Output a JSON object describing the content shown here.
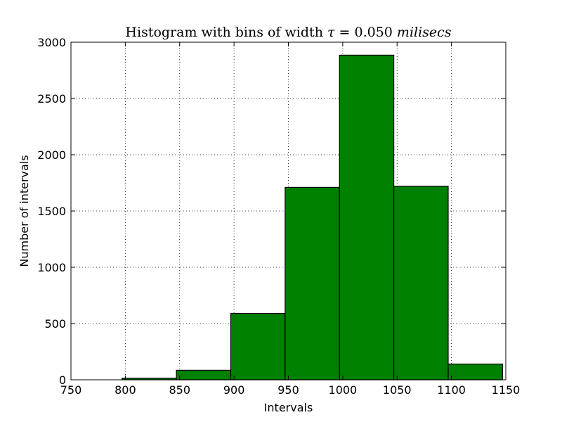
{
  "chart_data": {
    "type": "bar",
    "title": {
      "prefix": "Histogram with bins of width ",
      "symbol": "τ",
      "equals": " = 0.050 ",
      "unit": "milisecs"
    },
    "xlabel": "Intervals",
    "ylabel": "Number of intervals",
    "xlim": [
      750,
      1150
    ],
    "ylim": [
      0,
      3000
    ],
    "xticks": [
      750,
      800,
      850,
      900,
      950,
      1000,
      1050,
      1100,
      1150
    ],
    "yticks": [
      0,
      500,
      1000,
      1500,
      2000,
      2500,
      3000
    ],
    "grid": true,
    "grid_style": "dotted",
    "bar_color": "#008000",
    "edge_color": "#000000",
    "bins": [
      {
        "start": 797,
        "end": 847,
        "value": 15
      },
      {
        "start": 847,
        "end": 897,
        "value": 85
      },
      {
        "start": 897,
        "end": 947,
        "value": 590
      },
      {
        "start": 947,
        "end": 997,
        "value": 1710
      },
      {
        "start": 997,
        "end": 1047,
        "value": 2885
      },
      {
        "start": 1047,
        "end": 1097,
        "value": 1720
      },
      {
        "start": 1097,
        "end": 1147,
        "value": 140
      }
    ]
  }
}
